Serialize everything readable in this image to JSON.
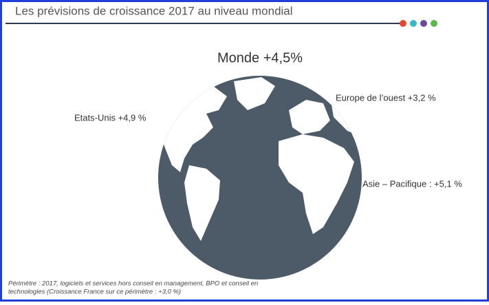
{
  "header": {
    "title": "Les prévisions de croissance 2017 au niveau mondial"
  },
  "globe": {
    "label": "Monde +4,5%"
  },
  "regions": [
    {
      "label": "Etats-Unis +4,9 %"
    },
    {
      "label": "Europe de l’ouest +3,2 %"
    },
    {
      "label": "Asie – Pacifique : +5,1 %"
    }
  ],
  "footnote": {
    "lines": [
      "Périmètre : 2017, logiciels et services hors conseil en management, BPO et conseil en",
      "technologies (Croissance France sur ce périmètre : +3,0 %)"
    ]
  }
}
